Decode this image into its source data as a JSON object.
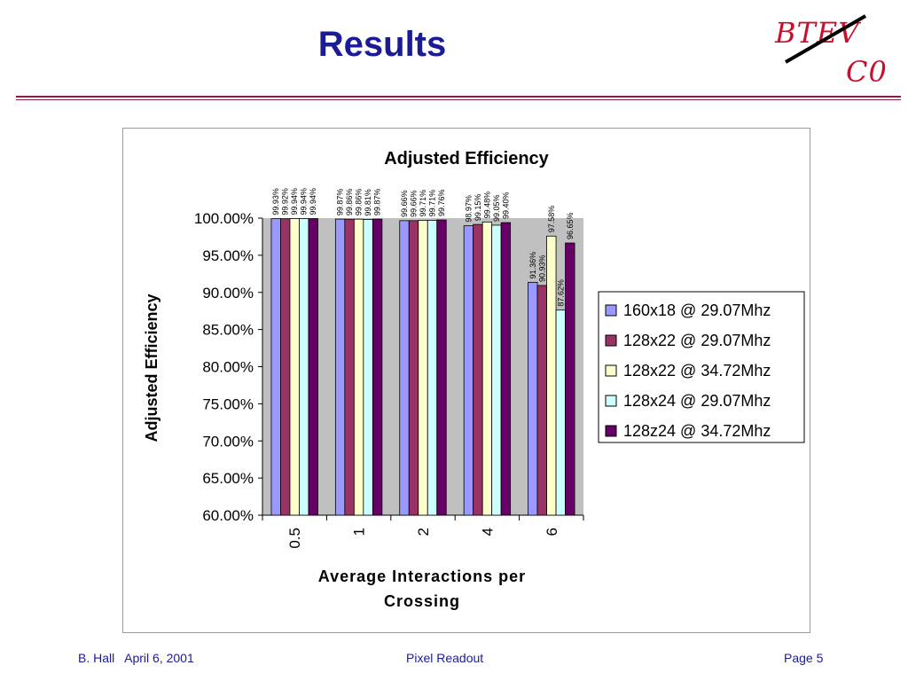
{
  "slide": {
    "title": "Results",
    "logo_top": "BTEV",
    "logo_bottom": "C0",
    "footer_author_date": "B. Hall   April 6, 2001",
    "footer_center": "Pixel Readout",
    "footer_page": "Page 5"
  },
  "colors": {
    "title": "#1b1b96",
    "rule": "#8b1b4d",
    "logo": "#c8102e",
    "plot_bg": "#c0c0c0"
  },
  "chart_data": {
    "type": "bar",
    "title": "Adjusted Efficiency",
    "xlabel": "Average Interactions per Crossing",
    "ylabel": "Adjusted Efficiency",
    "categories": [
      "0.5",
      "1",
      "2",
      "4",
      "6"
    ],
    "ylim": [
      60,
      100
    ],
    "ytick_step": 5,
    "ytick_labels": [
      "100.00%",
      "95.00%",
      "90.00%",
      "85.00%",
      "80.00%",
      "75.00%",
      "70.00%",
      "65.00%",
      "60.00%"
    ],
    "grid": false,
    "legend_position": "right",
    "series": [
      {
        "name": "160x18 @ 29.07Mhz",
        "color": "#9999ff",
        "values": [
          99.93,
          99.87,
          99.66,
          98.97,
          91.36
        ],
        "labels": [
          "99.93%",
          "99.87%",
          "99.66%",
          "98.97%",
          "91.36%"
        ]
      },
      {
        "name": "128x22 @ 29.07Mhz",
        "color": "#993366",
        "values": [
          99.92,
          99.86,
          99.66,
          99.15,
          90.93
        ],
        "labels": [
          "99.92%",
          "99.86%",
          "99.66%",
          "99.15%",
          "90.93%"
        ]
      },
      {
        "name": "128x22 @ 34.72Mhz",
        "color": "#ffffcc",
        "values": [
          99.94,
          99.86,
          99.71,
          99.48,
          97.58
        ],
        "labels": [
          "99.94%",
          "99.86%",
          "99.71%",
          "99.48%",
          "97.58%"
        ]
      },
      {
        "name": "128x24 @ 29.07Mhz",
        "color": "#ccffff",
        "values": [
          99.94,
          99.81,
          99.71,
          99.05,
          87.62
        ],
        "labels": [
          "99.94%",
          "99.81%",
          "99.71%",
          "99.05%",
          "87.62%"
        ]
      },
      {
        "name": "128z24 @ 34.72Mhz",
        "color": "#660066",
        "values": [
          99.94,
          99.87,
          99.76,
          99.4,
          96.65
        ],
        "labels": [
          "99.94%",
          "99.87%",
          "99.76%",
          "99.40%",
          "96.65%"
        ]
      }
    ]
  }
}
